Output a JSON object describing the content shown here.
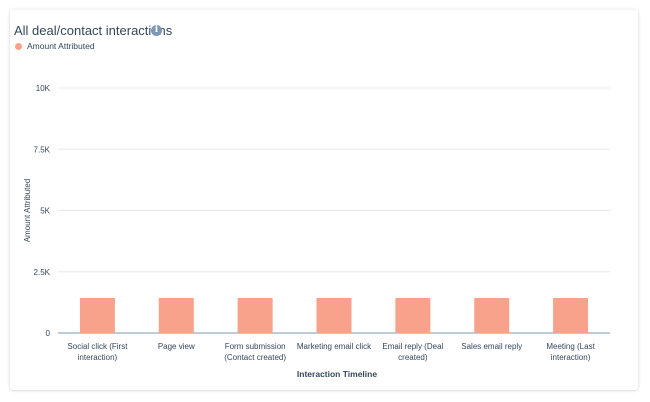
{
  "header": {
    "title": "All deal/contact interactions",
    "info_icon": "info-icon"
  },
  "colors": {
    "bar": "#f9a28b",
    "gridline": "#e5e8eb",
    "axis": "#7c98b6"
  },
  "chart_data": {
    "type": "bar",
    "title": "All deal/contact interactions",
    "xlabel": "Interaction Timeline",
    "ylabel": "Amount Attributed",
    "ylim": [
      0,
      10000
    ],
    "yticks": [
      0,
      2500,
      5000,
      7500,
      10000
    ],
    "ytick_labels": [
      "0",
      "2.5K",
      "5K",
      "7.5K",
      "10K"
    ],
    "grid": true,
    "legend_position": "top-left",
    "categories": [
      [
        "Social click (First",
        "interaction)"
      ],
      [
        "Page view"
      ],
      [
        "Form submission",
        "(Contact created)"
      ],
      [
        "Marketing email click"
      ],
      [
        "Email reply (Deal",
        "created)"
      ],
      [
        "Sales email reply"
      ],
      [
        "Meeting (Last",
        "interaction)"
      ]
    ],
    "series": [
      {
        "name": "Amount Attributed",
        "values": [
          1430,
          1430,
          1430,
          1430,
          1430,
          1430,
          1430
        ]
      }
    ]
  }
}
